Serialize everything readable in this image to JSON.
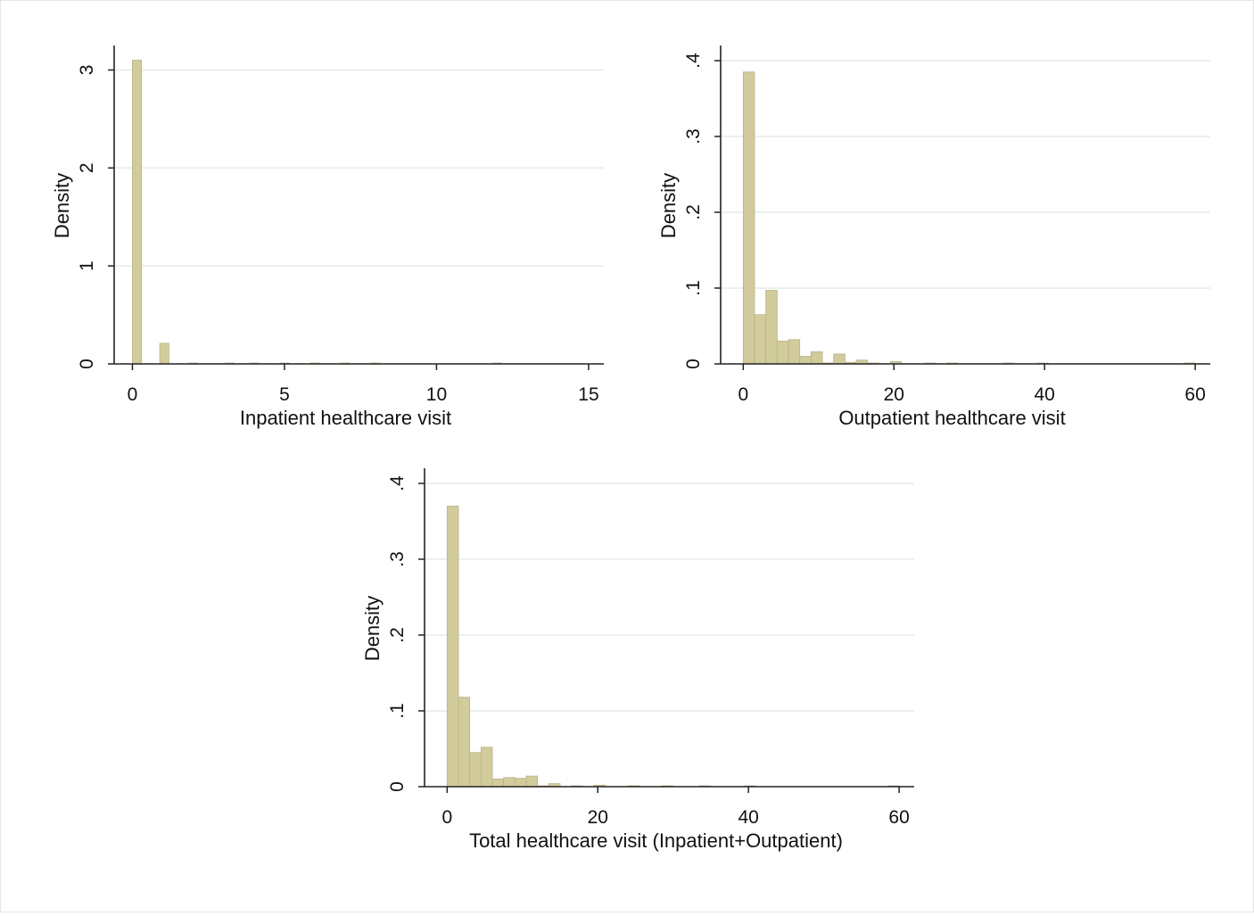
{
  "chart_data": [
    {
      "type": "bar",
      "title": "",
      "xlabel": "Inpatient healthcare visit",
      "ylabel": "Density",
      "xlim": [
        -0.6,
        15.5
      ],
      "ylim": [
        0,
        3.25
      ],
      "x_ticks": [
        0,
        5,
        10,
        15
      ],
      "x_tick_labels": [
        "0",
        "5",
        "10",
        "15"
      ],
      "y_ticks": [
        0,
        1,
        2,
        3
      ],
      "y_tick_labels": [
        "0",
        "1",
        "2",
        "3"
      ],
      "grid": true,
      "bar_width": 0.3,
      "bins": [
        {
          "x": 0.15,
          "y": 3.1
        },
        {
          "x": 1.05,
          "y": 0.21
        },
        {
          "x": 2.0,
          "y": 0.005
        },
        {
          "x": 3.2,
          "y": 0.005
        },
        {
          "x": 4.0,
          "y": 0.005
        },
        {
          "x": 5.0,
          "y": 0.004
        },
        {
          "x": 6.0,
          "y": 0.004
        },
        {
          "x": 7.0,
          "y": 0.004
        },
        {
          "x": 8.0,
          "y": 0.004
        },
        {
          "x": 12.0,
          "y": 0.004
        }
      ],
      "colors": {
        "bar_fill": "#d2cc9d",
        "bar_stroke": "#b9b184",
        "grid": "#e3ebeb",
        "axis": "#222222"
      }
    },
    {
      "type": "bar",
      "title": "",
      "xlabel": "Outpatient healthcare visit",
      "ylabel": "Density",
      "xlim": [
        -3,
        62
      ],
      "ylim": [
        0,
        0.42
      ],
      "x_ticks": [
        0,
        20,
        40,
        60
      ],
      "x_tick_labels": [
        "0",
        "20",
        "40",
        "60"
      ],
      "y_ticks": [
        0,
        0.1,
        0.2,
        0.3,
        0.4
      ],
      "y_tick_labels": [
        "0",
        ".1",
        ".2",
        ".3",
        ".4"
      ],
      "grid": true,
      "bar_width": 1.5,
      "bins": [
        {
          "x": 0.75,
          "y": 0.385
        },
        {
          "x": 2.25,
          "y": 0.065
        },
        {
          "x": 3.75,
          "y": 0.097
        },
        {
          "x": 5.25,
          "y": 0.03
        },
        {
          "x": 6.75,
          "y": 0.032
        },
        {
          "x": 8.25,
          "y": 0.01
        },
        {
          "x": 9.75,
          "y": 0.016
        },
        {
          "x": 11.25,
          "y": 0.001
        },
        {
          "x": 12.75,
          "y": 0.013
        },
        {
          "x": 14.25,
          "y": 0.002
        },
        {
          "x": 15.75,
          "y": 0.005
        },
        {
          "x": 17.25,
          "y": 0.001
        },
        {
          "x": 20.25,
          "y": 0.003
        },
        {
          "x": 24.75,
          "y": 0.001
        },
        {
          "x": 27.75,
          "y": 0.001
        },
        {
          "x": 35.25,
          "y": 0.001
        },
        {
          "x": 39.75,
          "y": 0.001
        },
        {
          "x": 59.25,
          "y": 0.001
        }
      ],
      "colors": {
        "bar_fill": "#d2cc9d",
        "bar_stroke": "#b9b184",
        "grid": "#e3ebeb",
        "axis": "#222222"
      }
    },
    {
      "type": "bar",
      "title": "",
      "xlabel": "Total healthcare visit (Inpatient+Outpatient)",
      "ylabel": "Density",
      "xlim": [
        -3,
        62
      ],
      "ylim": [
        0,
        0.42
      ],
      "x_ticks": [
        0,
        20,
        40,
        60
      ],
      "x_tick_labels": [
        "0",
        "20",
        "40",
        "60"
      ],
      "y_ticks": [
        0,
        0.1,
        0.2,
        0.3,
        0.4
      ],
      "y_tick_labels": [
        "0",
        ".1",
        ".2",
        ".3",
        ".4"
      ],
      "grid": true,
      "bar_width": 1.5,
      "bins": [
        {
          "x": 0.75,
          "y": 0.37
        },
        {
          "x": 2.25,
          "y": 0.118
        },
        {
          "x": 3.75,
          "y": 0.045
        },
        {
          "x": 5.25,
          "y": 0.052
        },
        {
          "x": 6.75,
          "y": 0.01
        },
        {
          "x": 8.25,
          "y": 0.012
        },
        {
          "x": 9.75,
          "y": 0.011
        },
        {
          "x": 11.25,
          "y": 0.014
        },
        {
          "x": 12.75,
          "y": 0.001
        },
        {
          "x": 14.25,
          "y": 0.004
        },
        {
          "x": 17.25,
          "y": 0.001
        },
        {
          "x": 20.25,
          "y": 0.002
        },
        {
          "x": 24.75,
          "y": 0.001
        },
        {
          "x": 29.25,
          "y": 0.001
        },
        {
          "x": 34.25,
          "y": 0.001
        },
        {
          "x": 40.25,
          "y": 0.001
        },
        {
          "x": 59.25,
          "y": 0.001
        }
      ],
      "colors": {
        "bar_fill": "#d2cc9d",
        "bar_stroke": "#b9b184",
        "grid": "#e3ebeb",
        "axis": "#222222"
      }
    }
  ]
}
